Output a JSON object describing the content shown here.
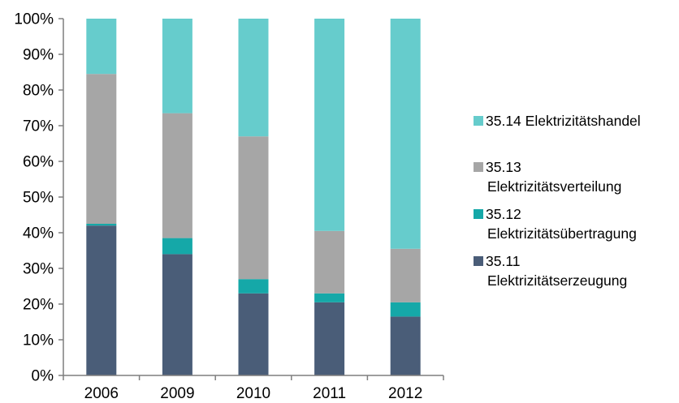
{
  "chart_data": {
    "type": "bar",
    "stacked": true,
    "normalized": true,
    "categories": [
      "2006",
      "2009",
      "2010",
      "2011",
      "2012"
    ],
    "y_ticks": [
      "0%",
      "10%",
      "20%",
      "30%",
      "40%",
      "50%",
      "60%",
      "70%",
      "80%",
      "90%",
      "100%"
    ],
    "ylim": [
      0,
      100
    ],
    "y_unit": "%",
    "grid": false,
    "legend_position": "right",
    "series": [
      {
        "name": "35.11 Elektrizitätserzeugung",
        "legend_lines": [
          "35.11",
          "Elektrizitätserzeugung"
        ],
        "color": "#4a5d78",
        "values": [
          42,
          34,
          23,
          20.5,
          16.5
        ]
      },
      {
        "name": "35.12 Elektrizitätsübertragung",
        "legend_lines": [
          "35.12",
          "Elektrizitätsübertragung"
        ],
        "color": "#15a8a8",
        "values": [
          0.5,
          4.5,
          4,
          2.5,
          4
        ]
      },
      {
        "name": "35.13 Elektrizitätsverteilung",
        "legend_lines": [
          "35.13",
          "Elektrizitätsverteilung"
        ],
        "color": "#a6a6a6",
        "values": [
          42,
          35,
          40,
          17.5,
          15
        ]
      },
      {
        "name": "35.14 Elektrizitätshandel",
        "legend_lines": [
          "35.14 Elektrizitätshandel"
        ],
        "color": "#66cccc",
        "values": [
          15.5,
          26.5,
          33,
          59.5,
          64.5
        ]
      }
    ]
  }
}
